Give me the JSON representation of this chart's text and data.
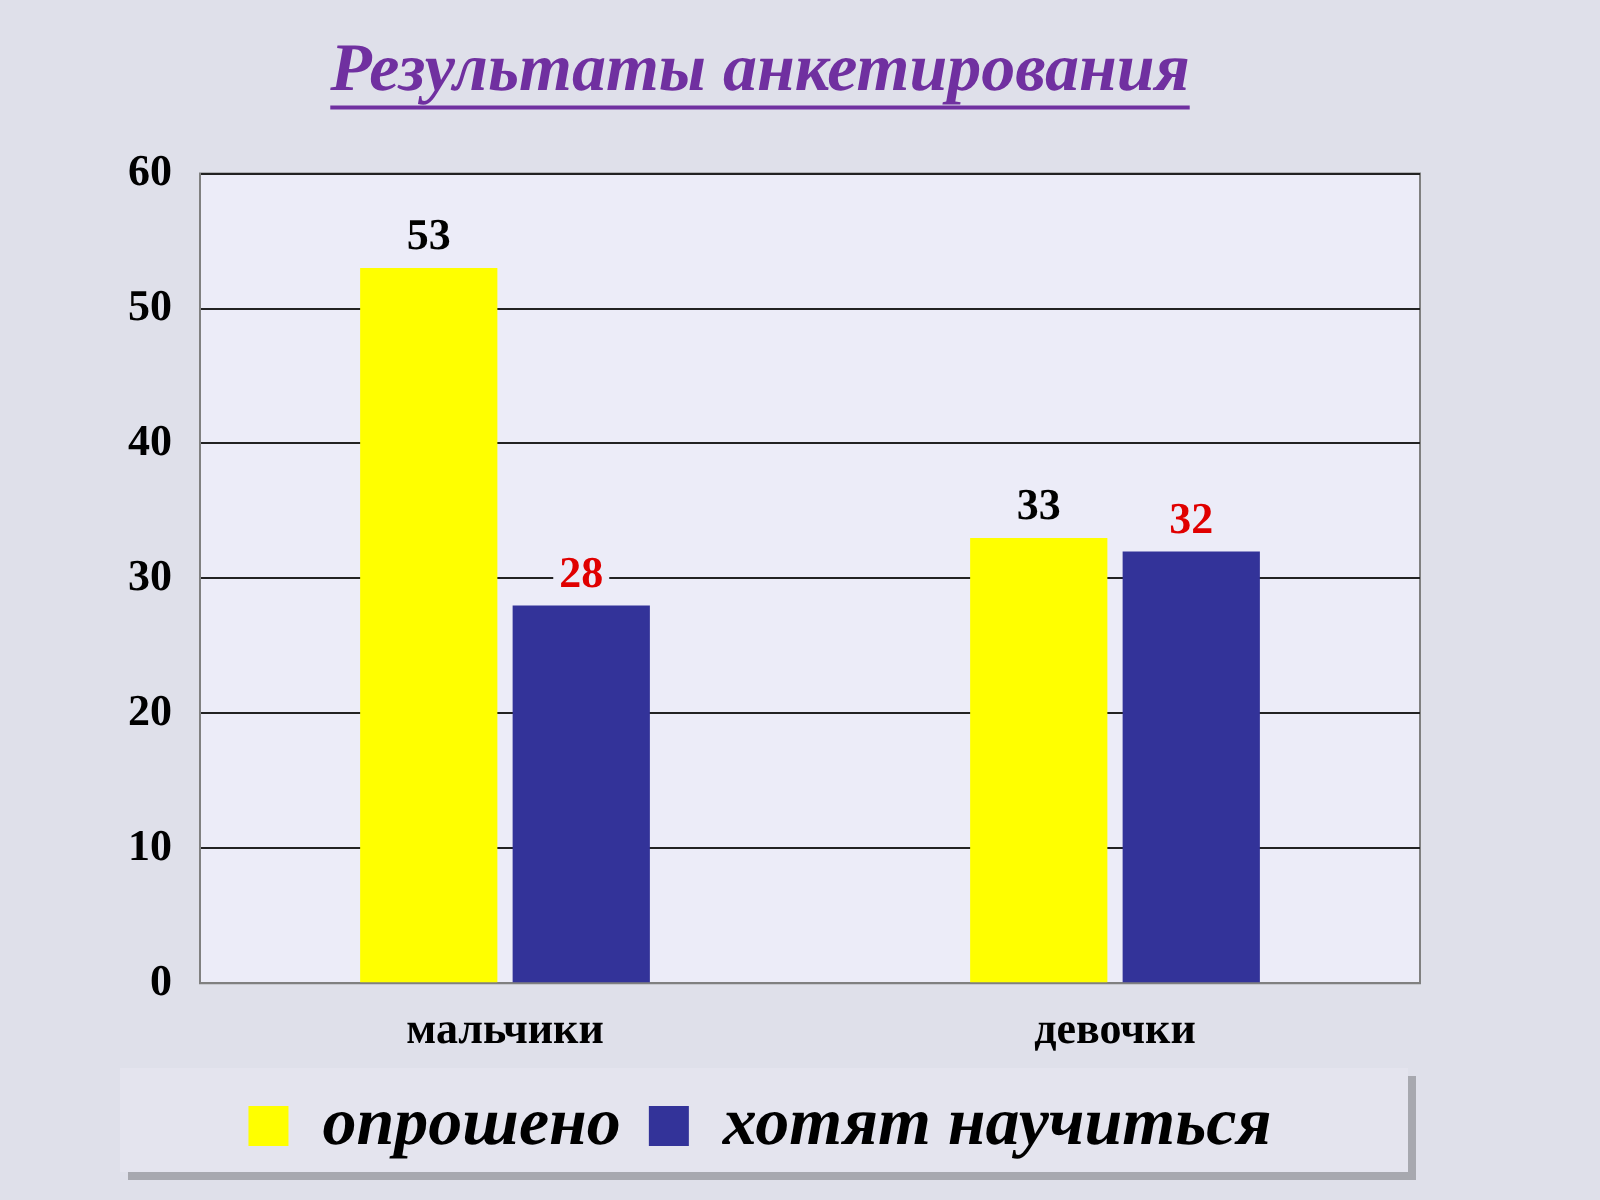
{
  "chart_data": {
    "type": "bar",
    "title": "Результаты анкетирования",
    "categories": [
      "мальчики",
      "девочки"
    ],
    "series": [
      {
        "name": "опрошено",
        "color": "#ffff00",
        "values": [
          53,
          33
        ]
      },
      {
        "name": "хотят научиться",
        "color": "#333399",
        "values": [
          28,
          32
        ]
      }
    ],
    "ylim": [
      0,
      60
    ],
    "yticks": [
      0,
      10,
      20,
      30,
      40,
      50,
      60
    ],
    "grid": "y",
    "legend": "bottom",
    "data_labels": true
  }
}
